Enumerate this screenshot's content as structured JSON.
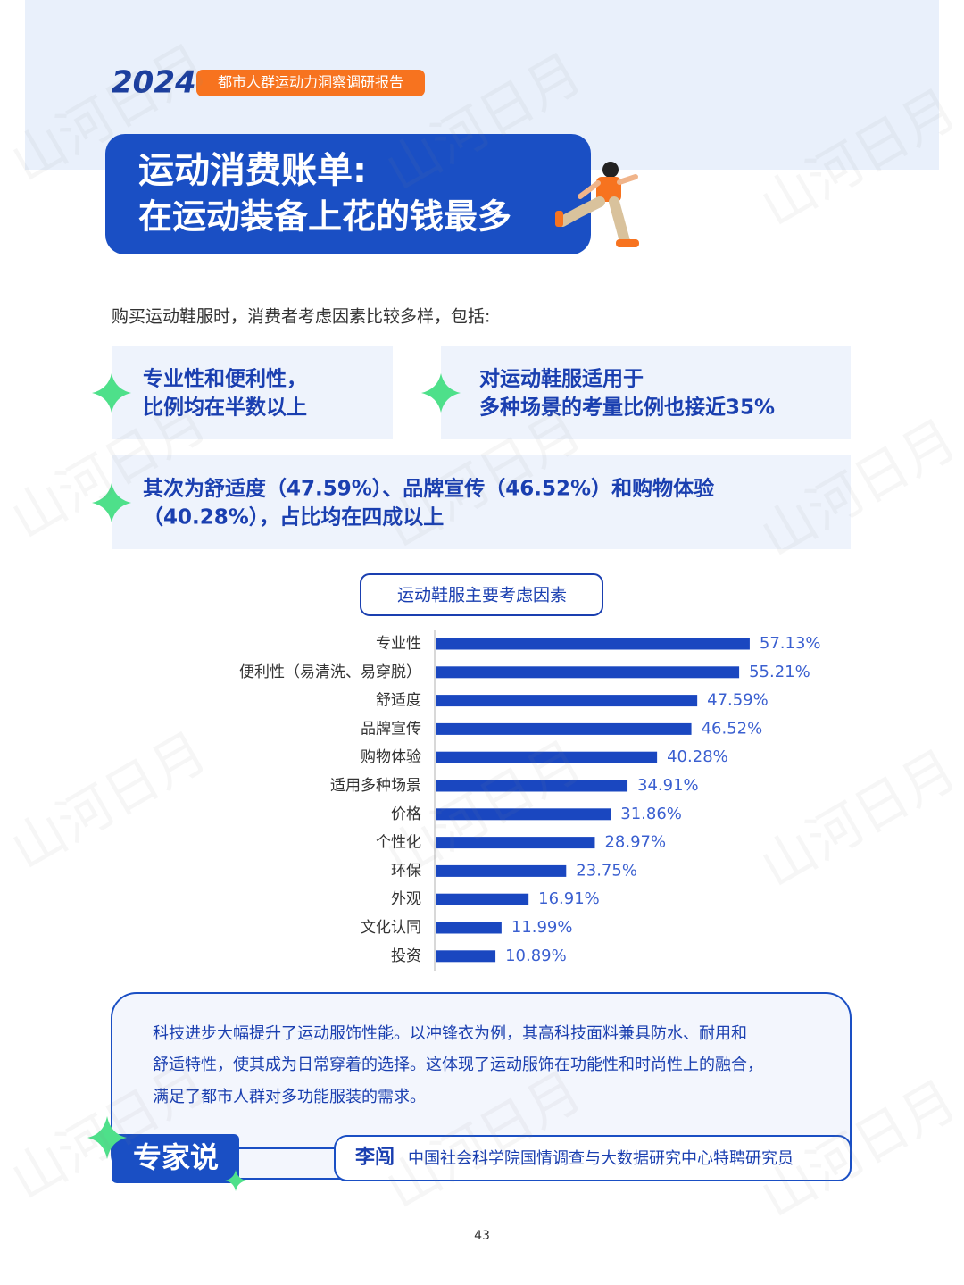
{
  "header": {
    "year": "2024",
    "report": "都市人群运动力洞察调研报告",
    "title_lines": [
      "运动消费账单:",
      "在运动装备上花的钱最多"
    ]
  },
  "intro": "购买运动鞋服时，消费者考虑因素比较多样，包括:",
  "highlights": [
    [
      "专业性和便利性，",
      "比例均在半数以上"
    ],
    [
      "对运动鞋服适用于",
      "多种场景的考量比例也接近35%"
    ],
    [
      "其次为舒适度（47.59%）、品牌宣传（46.52%）和购物体验",
      "（40.28%），占比均在四成以上"
    ]
  ],
  "chart_data": {
    "type": "bar",
    "orientation": "horizontal",
    "title": "运动鞋服主要考虑因素",
    "categories": [
      "专业性",
      "便利性（易清洗、易穿脱）",
      "舒适度",
      "品牌宣传",
      "购物体验",
      "适用多种场景",
      "价格",
      "个性化",
      "环保",
      "外观",
      "文化认同",
      "投资"
    ],
    "values": [
      57.13,
      55.21,
      47.59,
      46.52,
      40.28,
      34.91,
      31.86,
      28.97,
      23.75,
      16.91,
      11.99,
      10.89
    ],
    "value_labels": [
      "57.13%",
      "55.21%",
      "47.59%",
      "46.52%",
      "40.28%",
      "34.91%",
      "31.86%",
      "28.97%",
      "23.75%",
      "16.91%",
      "11.99%",
      "10.89%"
    ],
    "color": "#1a47c0"
  },
  "expert": {
    "text_lines": [
      "科技进步大幅提升了运动服饰性能。以冲锋衣为例，其高科技面料兼具防水、耐用和",
      "舒适特性，使其成为日常穿着的选择。这体现了运动服饰在功能性和时尚性上的融合，",
      "满足了都市人群对多功能服装的需求。"
    ],
    "badge": "专家说",
    "name": "李闯",
    "role": "中国社会科学院国情调查与大数据研究中心特聘研究员"
  },
  "page_number": "43",
  "watermark": "山河日月"
}
